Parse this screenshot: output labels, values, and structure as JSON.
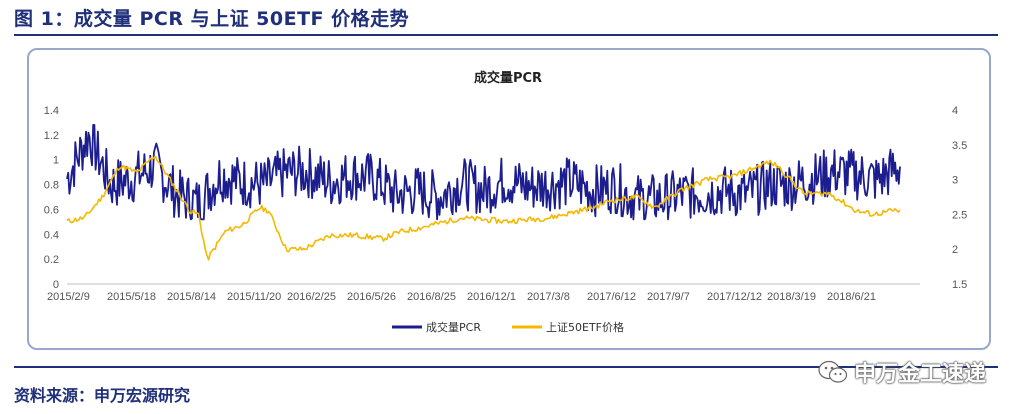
{
  "figure_title": "图 1：成交量 PCR 与上证 50ETF 价格走势",
  "source": "资料来源：申万宏源研究",
  "watermark": "申万金工速递",
  "colors": {
    "pcr": "#1c1d8f",
    "etf": "#f5b800",
    "accent": "#1f2f7a"
  },
  "chart_data": {
    "type": "line",
    "title": "成交量PCR",
    "x_tick_labels": [
      "2015/2/9",
      "2015/5/18",
      "2015/8/14",
      "2015/11/20",
      "2016/2/25",
      "2016/5/26",
      "2016/8/25",
      "2016/12/1",
      "2017/3/8",
      "2017/6/12",
      "2017/9/7",
      "2017/12/12",
      "2018/3/19",
      "2018/6/21"
    ],
    "y_left": {
      "range": [
        0,
        1.4
      ],
      "ticks": [
        "0",
        "0.2",
        "0.4",
        "0.6",
        "0.8",
        "1",
        "1.2",
        "1.4"
      ]
    },
    "y_right": {
      "range": [
        1.5,
        4
      ],
      "ticks": [
        "1.5",
        "2",
        "2.5",
        "3",
        "3.5",
        "4"
      ]
    },
    "grid": false,
    "legend_position": "bottom",
    "series": [
      {
        "name": "成交量PCR",
        "axis": "left",
        "x": [
          0,
          0.5,
          1,
          1.5,
          2,
          2.5,
          3,
          3.5,
          4,
          4.5,
          5,
          5.5,
          6,
          6.5,
          7,
          7.5,
          8,
          8.5,
          9,
          9.5,
          10,
          10.5,
          11,
          11.5,
          12,
          12.5,
          13,
          13.5,
          14,
          14.5,
          15,
          15.5,
          16,
          16.5,
          17,
          17.5,
          18,
          18.5,
          19
        ],
        "values": [
          0.85,
          1.2,
          0.8,
          0.85,
          0.95,
          0.72,
          0.65,
          0.88,
          0.82,
          0.8,
          0.9,
          0.9,
          0.82,
          0.88,
          0.85,
          0.72,
          0.75,
          0.7,
          0.82,
          0.75,
          0.84,
          0.78,
          0.8,
          0.82,
          0.75,
          0.78,
          0.68,
          0.68,
          0.72,
          0.73,
          0.75,
          0.72,
          0.8,
          0.8,
          0.85,
          0.9,
          0.88,
          0.84,
          0.95
        ]
      },
      {
        "name": "上证50ETF价格",
        "axis": "right",
        "x": [
          0,
          0.4,
          0.8,
          1.2,
          1.6,
          2.0,
          2.4,
          2.8,
          3.0,
          3.2,
          3.6,
          4.0,
          4.4,
          4.6,
          5.0,
          5.4,
          6.0,
          6.6,
          7.2,
          7.6,
          8.0,
          9.0,
          10.0,
          11.0,
          12.0,
          12.4,
          13.0,
          13.4,
          14.0,
          14.6,
          15.2,
          16.0,
          16.2,
          16.8,
          17.4,
          18.0,
          18.4,
          18.8,
          19.0
        ],
        "values": [
          2.4,
          2.45,
          2.75,
          3.2,
          3.1,
          3.35,
          2.95,
          2.55,
          2.5,
          1.85,
          2.25,
          2.35,
          2.6,
          2.55,
          2.0,
          2.0,
          2.2,
          2.2,
          2.15,
          2.25,
          2.3,
          2.45,
          2.4,
          2.45,
          2.6,
          2.7,
          2.75,
          2.6,
          2.85,
          3.0,
          3.05,
          3.25,
          3.2,
          2.8,
          2.8,
          2.55,
          2.5,
          2.55,
          2.55
        ]
      }
    ]
  }
}
